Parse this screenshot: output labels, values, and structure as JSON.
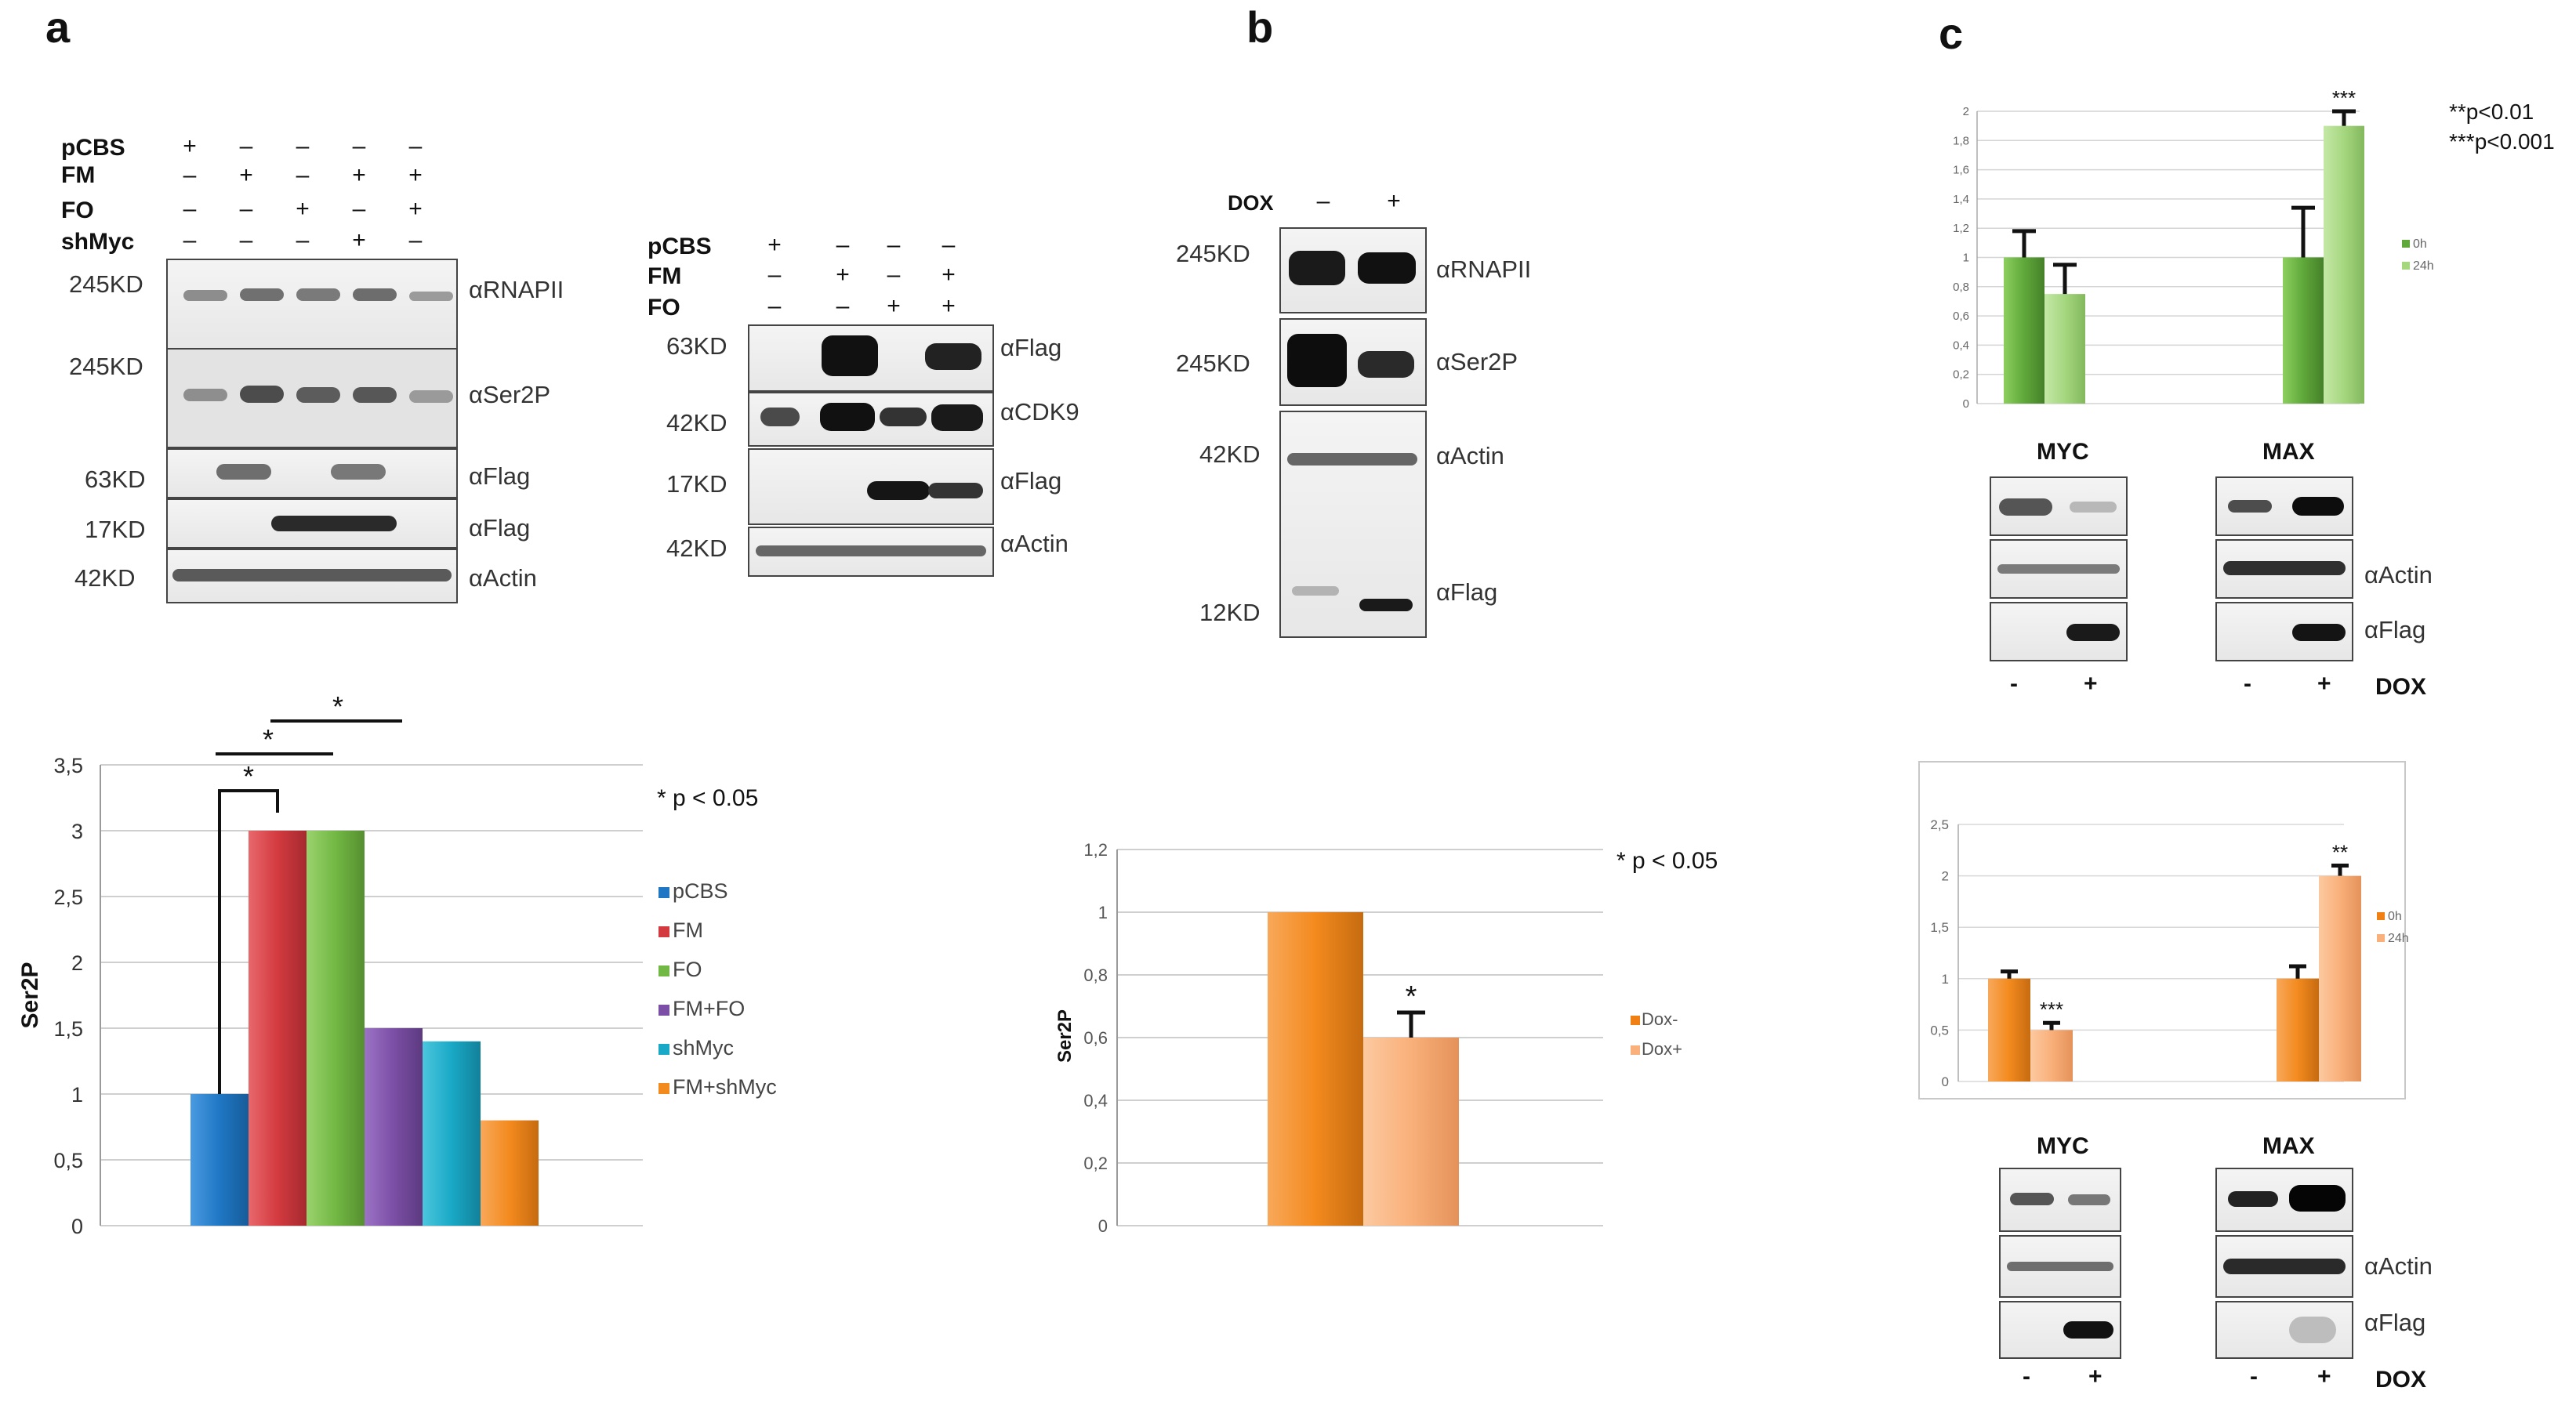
{
  "panel_labels": {
    "a": "a",
    "b": "b",
    "c": "c"
  },
  "panel_a": {
    "blot1": {
      "rows": [
        {
          "label": "pCBS",
          "signs": [
            "+",
            "–",
            "–",
            "–",
            "–"
          ]
        },
        {
          "label": "FM",
          "signs": [
            "–",
            "+",
            "–",
            "+",
            "+"
          ]
        },
        {
          "label": "FO",
          "signs": [
            "–",
            "–",
            "+",
            "–",
            "+"
          ]
        },
        {
          "label": "shMyc",
          "signs": [
            "–",
            "–",
            "–",
            "+",
            "–"
          ]
        }
      ],
      "sizes": [
        "245KD",
        "245KD",
        "63KD",
        "17KD",
        "42KD"
      ],
      "antibodies": [
        "αRNAPII",
        "αSer2P",
        "αFlag",
        "αFlag",
        "αActin"
      ]
    },
    "blot2": {
      "rows": [
        {
          "label": "pCBS",
          "signs": [
            "+",
            "–",
            "–",
            "–"
          ]
        },
        {
          "label": "FM",
          "signs": [
            "–",
            "+",
            "–",
            "+"
          ]
        },
        {
          "label": "FO",
          "signs": [
            "–",
            "–",
            "+",
            "+"
          ]
        }
      ],
      "sizes": [
        "63KD",
        "42KD",
        "17KD",
        "42KD"
      ],
      "antibodies": [
        "αFlag",
        "αCDK9",
        "αFlag",
        "αActin"
      ]
    }
  },
  "panel_b": {
    "dox_label": "DOX",
    "dox_signs": [
      "–",
      "+"
    ],
    "sizes": [
      "245KD",
      "245KD",
      "42KD",
      "12KD"
    ],
    "antibodies": [
      "αRNAPII",
      "αSer2P",
      "αActin",
      "αFlag"
    ]
  },
  "panel_c": {
    "top_blot": {
      "left_title": "MYC",
      "right_title": "MAX",
      "antibodies": [
        "αActin",
        "αFlag"
      ],
      "signs": [
        "-",
        "+",
        "-",
        "+"
      ],
      "dox_label": "DOX"
    },
    "bottom_blot": {
      "left_title": "MYC",
      "right_title": "MAX",
      "antibodies": [
        "αActin",
        "αFlag"
      ],
      "signs": [
        "-",
        "+",
        "-",
        "+"
      ],
      "dox_label": "DOX"
    }
  },
  "colors": {
    "pCBS": "#1f77c4",
    "FM": "#d33a3f",
    "FO": "#72b844",
    "FM+FO": "#7b4fa6",
    "shMyc": "#19a9c6",
    "FM+shMyc": "#f38a1e",
    "orange_dark": "#f07f14",
    "orange_light": "#f9b07a",
    "green_dark": "#5fa83a",
    "green_light": "#a5d77f"
  },
  "chart_data": [
    {
      "id": "a",
      "type": "bar",
      "categories": [
        "pCBS",
        "FM",
        "FO",
        "FM+FO",
        "shMyc",
        "FM+shMyc"
      ],
      "values": [
        1,
        3,
        3,
        1.5,
        1.4,
        0.8
      ],
      "ylabel": "Ser2P",
      "ylim": [
        0,
        3.5
      ],
      "yticks": [
        "0",
        "0,5",
        "1",
        "1,5",
        "2",
        "2,5",
        "3",
        "3,5"
      ],
      "legend": [
        "pCBS",
        "FM",
        "FO",
        "FM+FO",
        "shMyc",
        "FM+shMyc"
      ],
      "annotation": "* p < 0.05",
      "significance": [
        "*",
        "*",
        "*"
      ]
    },
    {
      "id": "b",
      "type": "bar",
      "categories": [
        "Dox-",
        "Dox+"
      ],
      "values": [
        1,
        0.6
      ],
      "errors": [
        0,
        0.08
      ],
      "ylabel": "Ser2P",
      "ylim": [
        0,
        1.2
      ],
      "yticks": [
        "0",
        "0,2",
        "0,4",
        "0,6",
        "0,8",
        "1",
        "1,2"
      ],
      "legend": [
        "Dox-",
        "Dox+"
      ],
      "annotation": "* p < 0.05",
      "significance": [
        "*"
      ]
    },
    {
      "id": "c-top",
      "type": "bar",
      "groups": [
        "MYC",
        "MAX"
      ],
      "series": [
        {
          "name": "0h",
          "values": [
            1,
            1
          ],
          "errors": [
            0.18,
            0.34
          ]
        },
        {
          "name": "24h",
          "values": [
            0.75,
            1.9
          ],
          "errors": [
            0.2,
            0.1
          ]
        }
      ],
      "ylim": [
        0,
        2
      ],
      "yticks": [
        "0",
        "0,2",
        "0,4",
        "0,6",
        "0,8",
        "1",
        "1,2",
        "1,4",
        "1,6",
        "1,8",
        "2"
      ],
      "legend": [
        "0h",
        "24h"
      ],
      "annotation_lines": [
        "**p<0.01",
        "***p<0.001"
      ],
      "significance": [
        "***"
      ]
    },
    {
      "id": "c-bottom",
      "type": "bar",
      "groups": [
        "MYC",
        "MAX"
      ],
      "series": [
        {
          "name": "0h",
          "values": [
            1,
            1
          ],
          "errors": [
            0.07,
            0.12
          ]
        },
        {
          "name": "24h",
          "values": [
            0.5,
            2
          ],
          "errors": [
            0.07,
            0.1
          ]
        }
      ],
      "ylim": [
        0,
        2.5
      ],
      "yticks": [
        "0",
        "0,5",
        "1",
        "1,5",
        "2",
        "2,5"
      ],
      "legend": [
        "0h",
        "24h"
      ],
      "significance": [
        "***",
        "**"
      ]
    }
  ]
}
